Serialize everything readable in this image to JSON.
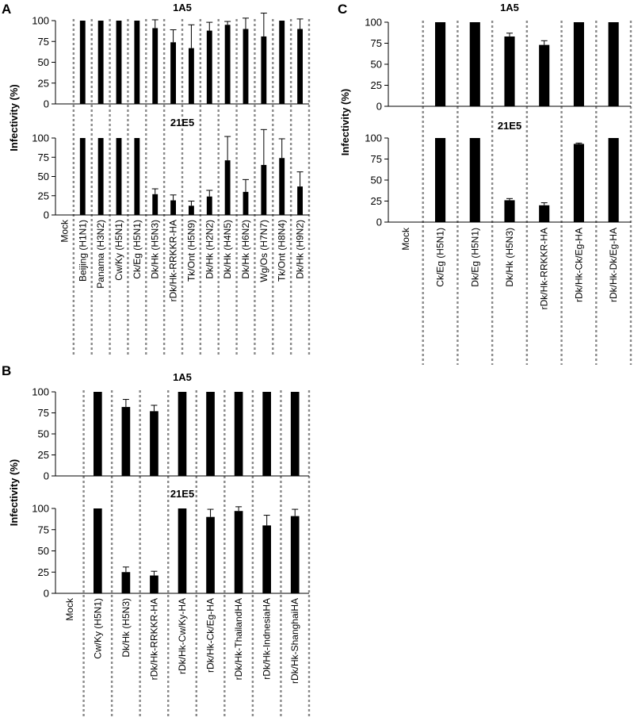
{
  "panels": [
    {
      "letter": "A",
      "ylabel": "Infectivity (%)",
      "categories": [
        "Mock",
        "Beijing (H1N1)",
        "Panama (H3N2)",
        "Cw/Ky (H5N1)",
        "Ck/Eg (H5N1)",
        "Dk/Hk (H5N3)",
        "rDk/Hk-RRKKR-HA",
        "Tk/Ont (H5N9)",
        "Dk/Hk (H2N2)",
        "Dk/Hk (H4N5)",
        "Dk/Hk (H6N2)",
        "Wg/Os (H7N7)",
        "Tk/Ont (H8N4)",
        "Dk/Hk (H9N2)"
      ],
      "charts": [
        {
          "title": "1A5",
          "type": "bar",
          "ylim": [
            0,
            100
          ],
          "yticks": [
            0,
            25,
            50,
            75,
            100
          ],
          "values": [
            0,
            100,
            100,
            100,
            100,
            91,
            74,
            67,
            88,
            95,
            90,
            81,
            100,
            90
          ],
          "errors": [
            0,
            0,
            0,
            0,
            0,
            10,
            15,
            28,
            10,
            4,
            13,
            28,
            0,
            12
          ]
        },
        {
          "title": "21E5",
          "type": "bar",
          "ylim": [
            0,
            100
          ],
          "yticks": [
            0,
            25,
            50,
            75,
            100
          ],
          "values": [
            0,
            100,
            100,
            100,
            100,
            27,
            19,
            12,
            24,
            71,
            30,
            65,
            74,
            37
          ],
          "errors": [
            0,
            0,
            0,
            0,
            0,
            7,
            7,
            6,
            8,
            31,
            16,
            46,
            25,
            19
          ]
        }
      ]
    },
    {
      "letter": "B",
      "ylabel": "Infectivity (%)",
      "categories": [
        "Mock",
        "Cw/Ky (H5N1)",
        "Dk/Hk (H5N3)",
        "rDk/Hk-RRKKR-HA",
        "rDk/Hk-Cw/Ky-HA",
        "rDk/Hk-Ck/Eg-HA",
        "rDk/Hk-ThailandHA",
        "rDk/Hk-IndnesiaHA",
        "rDk/Hk-ShanghaiHA"
      ],
      "charts": [
        {
          "title": "1A5",
          "type": "bar",
          "ylim": [
            0,
            100
          ],
          "yticks": [
            0,
            25,
            50,
            75,
            100
          ],
          "values": [
            0,
            100,
            82,
            77,
            100,
            100,
            100,
            100,
            100
          ],
          "errors": [
            0,
            0,
            9,
            7,
            0,
            0,
            0,
            0,
            0
          ]
        },
        {
          "title": "21E5",
          "type": "bar",
          "ylim": [
            0,
            100
          ],
          "yticks": [
            0,
            25,
            50,
            75,
            100
          ],
          "values": [
            0,
            100,
            25,
            21,
            100,
            90,
            97,
            80,
            91
          ],
          "errors": [
            0,
            0,
            6,
            5,
            0,
            9,
            5,
            12,
            8
          ]
        }
      ]
    },
    {
      "letter": "C",
      "ylabel": "Infectivity (%)",
      "categories": [
        "Mock",
        "Ck/Eg (H5N1)",
        "Dk/Eg (H5N1)",
        "Dk/Hk (H5N3)",
        "rDk/Hk-RRKKR-HA",
        "rDk/Hk-Ck/Eg-HA",
        "rDk/Hk-Dk/Eg-HA"
      ],
      "charts": [
        {
          "title": "1A5",
          "type": "bar",
          "ylim": [
            0,
            100
          ],
          "yticks": [
            0,
            25,
            50,
            75,
            100
          ],
          "values": [
            0,
            100,
            100,
            83,
            73,
            100,
            100
          ],
          "errors": [
            0,
            0,
            0,
            4,
            5,
            0,
            0
          ]
        },
        {
          "title": "21E5",
          "type": "bar",
          "ylim": [
            0,
            100
          ],
          "yticks": [
            0,
            25,
            50,
            75,
            100
          ],
          "values": [
            0,
            100,
            100,
            26,
            20,
            93,
            100
          ],
          "errors": [
            0,
            0,
            0,
            2,
            3,
            1,
            0
          ]
        }
      ]
    }
  ]
}
